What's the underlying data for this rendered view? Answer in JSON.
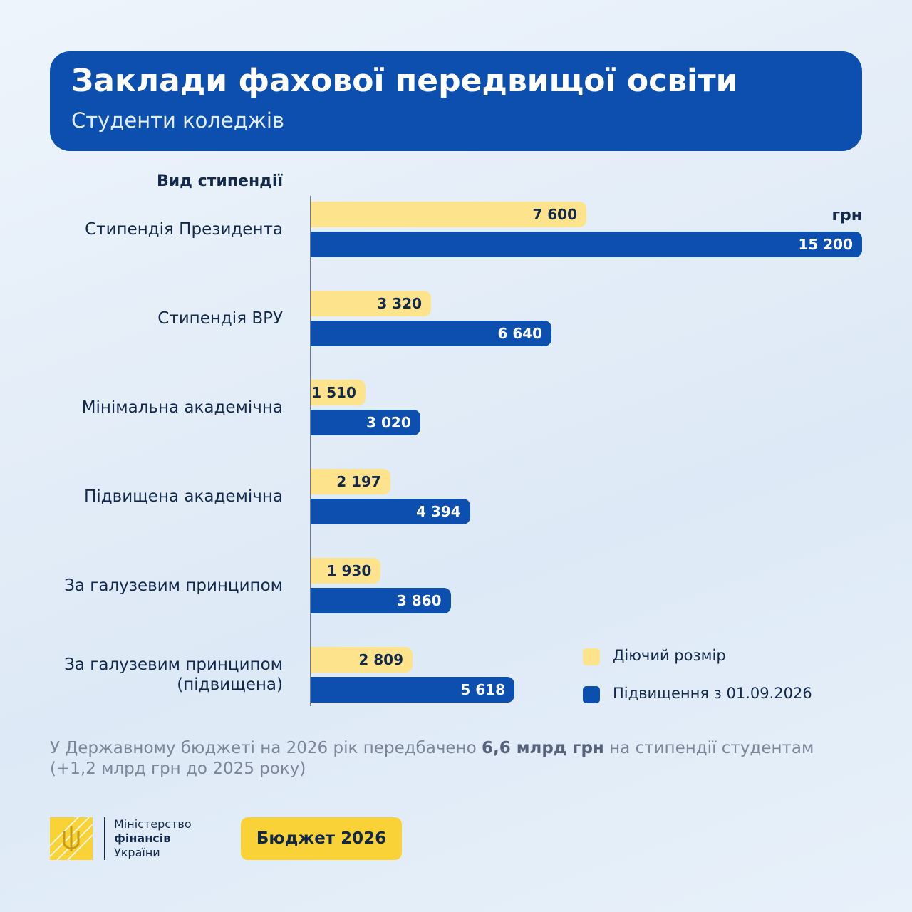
{
  "chart_data": {
    "type": "bar",
    "orientation": "horizontal",
    "title": "Заклади фахової передвищої освіти",
    "subtitle": "Студенти коледжів",
    "y_label": "Вид стипендії",
    "unit": "грн",
    "categories": [
      "Стипендія Президента",
      "Стипендія ВРУ",
      "Мінімальна академічна",
      "Підвищена академічна",
      "За галузевим принципом",
      "За галузевим принципом\n(підвищена)"
    ],
    "series": [
      {
        "name": "Діючий розмір",
        "color": "#fde48c",
        "label_color": "#13294b",
        "values": [
          7600,
          3320,
          1510,
          2197,
          1930,
          2809
        ],
        "value_labels": [
          "7 600",
          "3 320",
          "1 510",
          "2 197",
          "1 930",
          "2 809"
        ]
      },
      {
        "name": "Підвищення з 01.09.2026",
        "color": "#0c4fae",
        "label_color": "#ffffff",
        "values": [
          15200,
          6640,
          3020,
          4394,
          3860,
          5618
        ],
        "value_labels": [
          "15 200",
          "6 640",
          "3 020",
          "4 394",
          "3 860",
          "5 618"
        ]
      }
    ]
  },
  "footer": {
    "note": [
      "У Державному бюджеті на 2026 рік передбачено ",
      "6,6 млрд грн",
      " на стипендії студентам (+1,2 млрд грн до 2025 року)"
    ],
    "logo": [
      "Міністерство",
      "фінансів",
      "України"
    ],
    "badge": "Бюджет 2026"
  }
}
